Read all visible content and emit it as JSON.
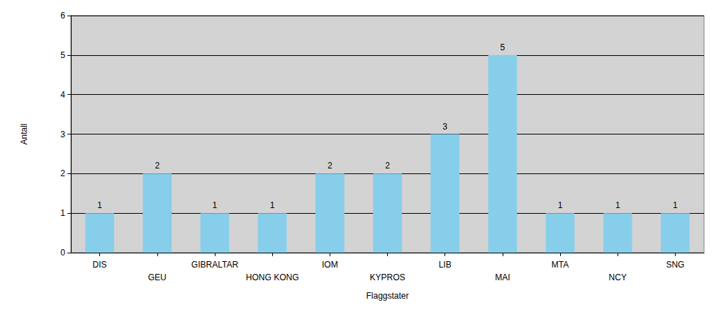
{
  "chart_data": {
    "type": "bar",
    "x_label": "Flaggstater",
    "y_label": "Antall",
    "categories": [
      "DIS",
      "GEU",
      "GIBRALTAR",
      "HONG KONG",
      "IOM",
      "KYPROS",
      "LIB",
      "MAI",
      "MTA",
      "NCY",
      "SNG"
    ],
    "values": [
      1,
      2,
      1,
      1,
      2,
      2,
      3,
      5,
      1,
      1,
      1
    ],
    "color": "#87ceeb",
    "ylim": [
      0,
      6
    ],
    "yticks": [
      0,
      1,
      2,
      3,
      4,
      5,
      6
    ],
    "grid": true,
    "data_labels": true
  }
}
